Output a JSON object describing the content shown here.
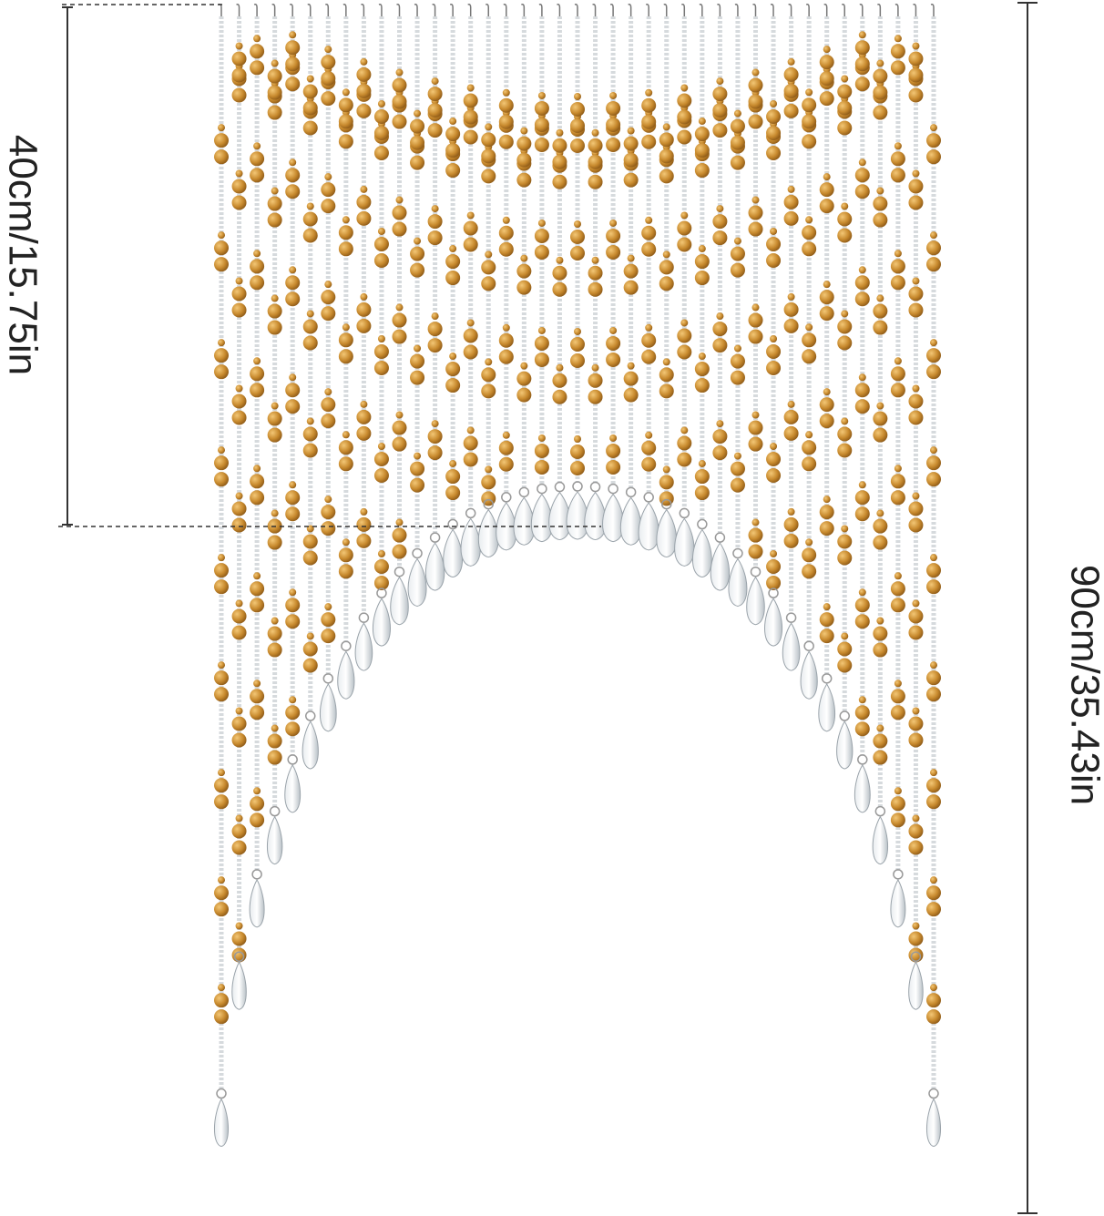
{
  "dimensions": {
    "drop": "40cm/15.75in",
    "length": "90cm/35.43in"
  }
}
